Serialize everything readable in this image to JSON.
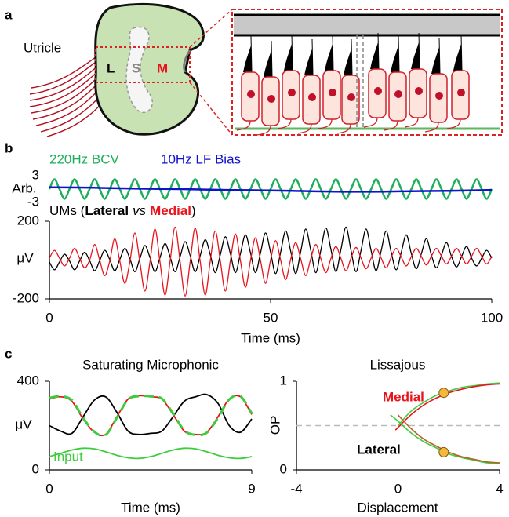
{
  "figure": {
    "panel_labels": [
      "a",
      "b",
      "c"
    ],
    "organ_label": "Utricle",
    "regions": [
      "L",
      "S",
      "M"
    ]
  },
  "chart_data": [
    {
      "type": "line",
      "ylabel": "Arb.",
      "xlim": [
        0,
        100
      ],
      "ylim": [
        -3,
        3
      ],
      "yticks": [
        3,
        -3
      ],
      "x": [
        0,
        1.14,
        2.27,
        3.41,
        4.55,
        5.68,
        6.82,
        7.95,
        9.09,
        10.23,
        11.36,
        12.5,
        13.64,
        14.77,
        15.91,
        17.05,
        18.18,
        19.32,
        20.45,
        21.59,
        22.73,
        23.86,
        25,
        26.14,
        27.27,
        28.41,
        29.55,
        30.68,
        31.82,
        32.95,
        34.09,
        35.23,
        36.36,
        37.5,
        38.64,
        39.77,
        40.91,
        42.05,
        43.18,
        44.32,
        45.45,
        46.59,
        47.73,
        48.86,
        50,
        51.14,
        52.27,
        53.41,
        54.55,
        55.68,
        56.82,
        57.95,
        59.09,
        60.23,
        61.36,
        62.5,
        63.64,
        64.77,
        65.91,
        67.05,
        68.18,
        69.32,
        70.45,
        71.59,
        72.73,
        73.86,
        75,
        76.14,
        77.27,
        78.41,
        79.55,
        80.68,
        81.82,
        82.95,
        84.09,
        85.23,
        86.36,
        87.5,
        88.64,
        89.77,
        90.91,
        92.05,
        93.18,
        94.32,
        95.45,
        96.59,
        97.73,
        98.86,
        100
      ],
      "series": [
        {
          "name": "220Hz BCV",
          "color": "#1fae5a",
          "values": [
            0,
            2.2,
            0,
            -2.2,
            0,
            2.2,
            0,
            -2.2,
            0,
            2.2,
            0,
            -2.2,
            0,
            2.2,
            0,
            -2.2,
            0,
            2.2,
            0,
            -2.2,
            0,
            2.2,
            0,
            -2.2,
            0,
            2.2,
            0,
            -2.2,
            0,
            2.2,
            0,
            -2.2,
            0,
            2.2,
            0,
            -2.2,
            0,
            2.2,
            0,
            -2.2,
            0,
            2.2,
            0,
            -2.2,
            0,
            2.2,
            0,
            -2.2,
            0,
            2.2,
            0,
            -2.2,
            0,
            2.2,
            0,
            -2.2,
            0,
            2.2,
            0,
            -2.2,
            0,
            2.2,
            0,
            -2.2,
            0,
            2.2,
            0,
            -2.2,
            0,
            2.2,
            0,
            -2.2,
            0,
            2.2,
            0,
            -2.2,
            0,
            2.2,
            0,
            -2.2,
            0,
            2.2,
            0,
            -2.2,
            0,
            2.2,
            0,
            -2.2,
            0
          ]
        },
        {
          "name": "10Hz LF Bias",
          "color": "#1010d0",
          "x": [
            0,
            10,
            20,
            30,
            40,
            50,
            60,
            70,
            80,
            90,
            100
          ],
          "values": [
            0.4,
            0.3,
            0.1,
            0,
            -0.2,
            -0.3,
            -0.5,
            -0.6,
            -0.5,
            -0.4,
            -0.2
          ]
        }
      ]
    },
    {
      "type": "line",
      "title": "UMs (",
      "title_middle": "vs",
      "title_end": ")",
      "ylabel": "μV",
      "xlabel": "Time (ms)",
      "xlim": [
        0,
        100
      ],
      "xticks": [
        0,
        50,
        100
      ],
      "ylim": [
        -200,
        200
      ],
      "yticks": [
        200,
        -200
      ],
      "x": [
        0,
        1.14,
        2.27,
        3.41,
        4.55,
        5.68,
        6.82,
        7.95,
        9.09,
        10.23,
        11.36,
        12.5,
        13.64,
        14.77,
        15.91,
        17.05,
        18.18,
        19.32,
        20.45,
        21.59,
        22.73,
        23.86,
        25,
        26.14,
        27.27,
        28.41,
        29.55,
        30.68,
        31.82,
        32.95,
        34.09,
        35.23,
        36.36,
        37.5,
        38.64,
        39.77,
        40.91,
        42.05,
        43.18,
        44.32,
        45.45,
        46.59,
        47.73,
        48.86,
        50,
        51.14,
        52.27,
        53.41,
        54.55,
        55.68,
        56.82,
        57.95,
        59.09,
        60.23,
        61.36,
        62.5,
        63.64,
        64.77,
        65.91,
        67.05,
        68.18,
        69.32,
        70.45,
        71.59,
        72.73,
        73.86,
        75,
        76.14,
        77.27,
        78.41,
        79.55,
        80.68,
        81.82,
        82.95,
        84.09,
        85.23,
        86.36,
        87.5,
        88.64,
        89.77,
        90.91,
        92.05,
        93.18,
        94.32,
        95.45,
        96.59,
        97.73,
        98.86,
        100
      ],
      "series": [
        {
          "name": "Lateral",
          "color": "#000000",
          "values": [
            -10,
            -50,
            -10,
            30,
            -5,
            -50,
            -5,
            40,
            -3,
            -55,
            -3,
            50,
            3,
            -55,
            3,
            60,
            8,
            -60,
            8,
            75,
            13,
            -60,
            13,
            85,
            18,
            -60,
            18,
            95,
            23,
            -60,
            23,
            105,
            28,
            -65,
            28,
            120,
            33,
            -65,
            33,
            130,
            38,
            -65,
            38,
            140,
            40,
            -70,
            40,
            150,
            45,
            -70,
            45,
            160,
            50,
            -65,
            50,
            165,
            55,
            -60,
            55,
            170,
            50,
            -60,
            50,
            160,
            48,
            -55,
            48,
            150,
            40,
            -50,
            40,
            130,
            33,
            -45,
            33,
            110,
            25,
            -40,
            25,
            90,
            18,
            -35,
            18,
            70,
            10,
            -30,
            10,
            50,
            10
          ]
        },
        {
          "name": "Medial",
          "color": "#e8141c",
          "values": [
            10,
            50,
            10,
            -30,
            10,
            60,
            10,
            -40,
            0,
            80,
            0,
            -80,
            -5,
            110,
            -5,
            -120,
            -10,
            140,
            -10,
            -160,
            -10,
            160,
            -10,
            -180,
            -8,
            170,
            -8,
            -185,
            -8,
            165,
            -8,
            -180,
            -5,
            150,
            -5,
            -160,
            -3,
            135,
            -3,
            -140,
            -3,
            115,
            -3,
            -120,
            0,
            100,
            0,
            -100,
            5,
            90,
            5,
            -80,
            8,
            80,
            8,
            -65,
            8,
            70,
            8,
            -55,
            10,
            65,
            10,
            -45,
            10,
            60,
            10,
            -40,
            15,
            60,
            15,
            -30,
            18,
            60,
            18,
            -25,
            20,
            60,
            20,
            -20,
            20,
            60,
            20,
            -20,
            20,
            60,
            20,
            -20,
            20
          ]
        }
      ]
    },
    {
      "type": "line",
      "title": "Saturating Microphonic",
      "ylabel": "μV",
      "xlabel": "Time (ms)",
      "xlim": [
        0,
        9
      ],
      "xticks": [
        0,
        9
      ],
      "ylim": [
        0,
        400
      ],
      "yticks": [
        400,
        0
      ],
      "x": [
        0,
        0.5,
        1,
        1.5,
        2,
        2.5,
        3,
        3.5,
        4,
        4.5,
        5,
        5.5,
        6,
        6.5,
        7,
        7.5,
        8,
        8.5,
        9
      ],
      "series": [
        {
          "color": "#000000",
          "values": [
            200,
            175,
            165,
            240,
            315,
            330,
            260,
            175,
            160,
            165,
            175,
            240,
            310,
            330,
            340,
            300,
            200,
            170,
            230
          ]
        },
        {
          "color": "#e8141c",
          "values": [
            320,
            330,
            310,
            230,
            170,
            160,
            240,
            320,
            335,
            330,
            320,
            250,
            175,
            160,
            170,
            240,
            320,
            330,
            250
          ]
        },
        {
          "color": "#3dcc3d",
          "dashed": true,
          "values": [
            325,
            332,
            315,
            235,
            172,
            158,
            235,
            318,
            333,
            332,
            322,
            255,
            178,
            158,
            168,
            235,
            318,
            332,
            255
          ]
        },
        {
          "name": "Input",
          "color": "#3dcc3d",
          "values": [
            60,
            75,
            90,
            98,
            95,
            82,
            66,
            55,
            52,
            60,
            75,
            90,
            98,
            95,
            82,
            66,
            55,
            52,
            60
          ]
        }
      ]
    },
    {
      "type": "line",
      "title": "Lissajous",
      "ylabel": "OP",
      "xlabel": "Displacement",
      "xlim": [
        -4,
        4
      ],
      "xticks": [
        -4,
        0,
        4
      ],
      "ylim": [
        0,
        1
      ],
      "yticks": [
        1,
        0
      ],
      "hline": 0.5,
      "series": [
        {
          "color": "#3dcc3d",
          "x": [
            0,
            0.5,
            1,
            1.5,
            2,
            2.5,
            3,
            3.5,
            4
          ],
          "values": [
            0.5,
            0.66,
            0.76,
            0.84,
            0.89,
            0.93,
            0.95,
            0.97,
            0.98
          ]
        },
        {
          "color": "#e8141c",
          "x": [
            -0.1,
            0.5,
            1,
            1.5,
            2,
            2.5,
            3,
            3.5,
            4
          ],
          "values": [
            0.45,
            0.62,
            0.73,
            0.81,
            0.87,
            0.91,
            0.94,
            0.96,
            0.97
          ]
        },
        {
          "color": "#3dcc3d",
          "x": [
            -0.3,
            0,
            0.5,
            1,
            1.5,
            2,
            2.5,
            3,
            3.5,
            4
          ],
          "values": [
            0.62,
            0.55,
            0.42,
            0.32,
            0.25,
            0.18,
            0.14,
            0.11,
            0.08,
            0.07
          ]
        },
        {
          "color": "#b8602a",
          "x": [
            0,
            0.5,
            1,
            1.5,
            2,
            2.5,
            3,
            3.5,
            4
          ],
          "values": [
            0.62,
            0.47,
            0.35,
            0.27,
            0.2,
            0.15,
            0.12,
            0.09,
            0.08
          ]
        }
      ],
      "markers": {
        "color": "#f5b73c",
        "x": [
          1.8,
          1.8
        ],
        "values": [
          0.87,
          0.2
        ]
      },
      "annotations": [
        {
          "text": "Medial",
          "color": "#e8141c"
        },
        {
          "text": "Lateral",
          "color": "#000000"
        }
      ]
    }
  ]
}
